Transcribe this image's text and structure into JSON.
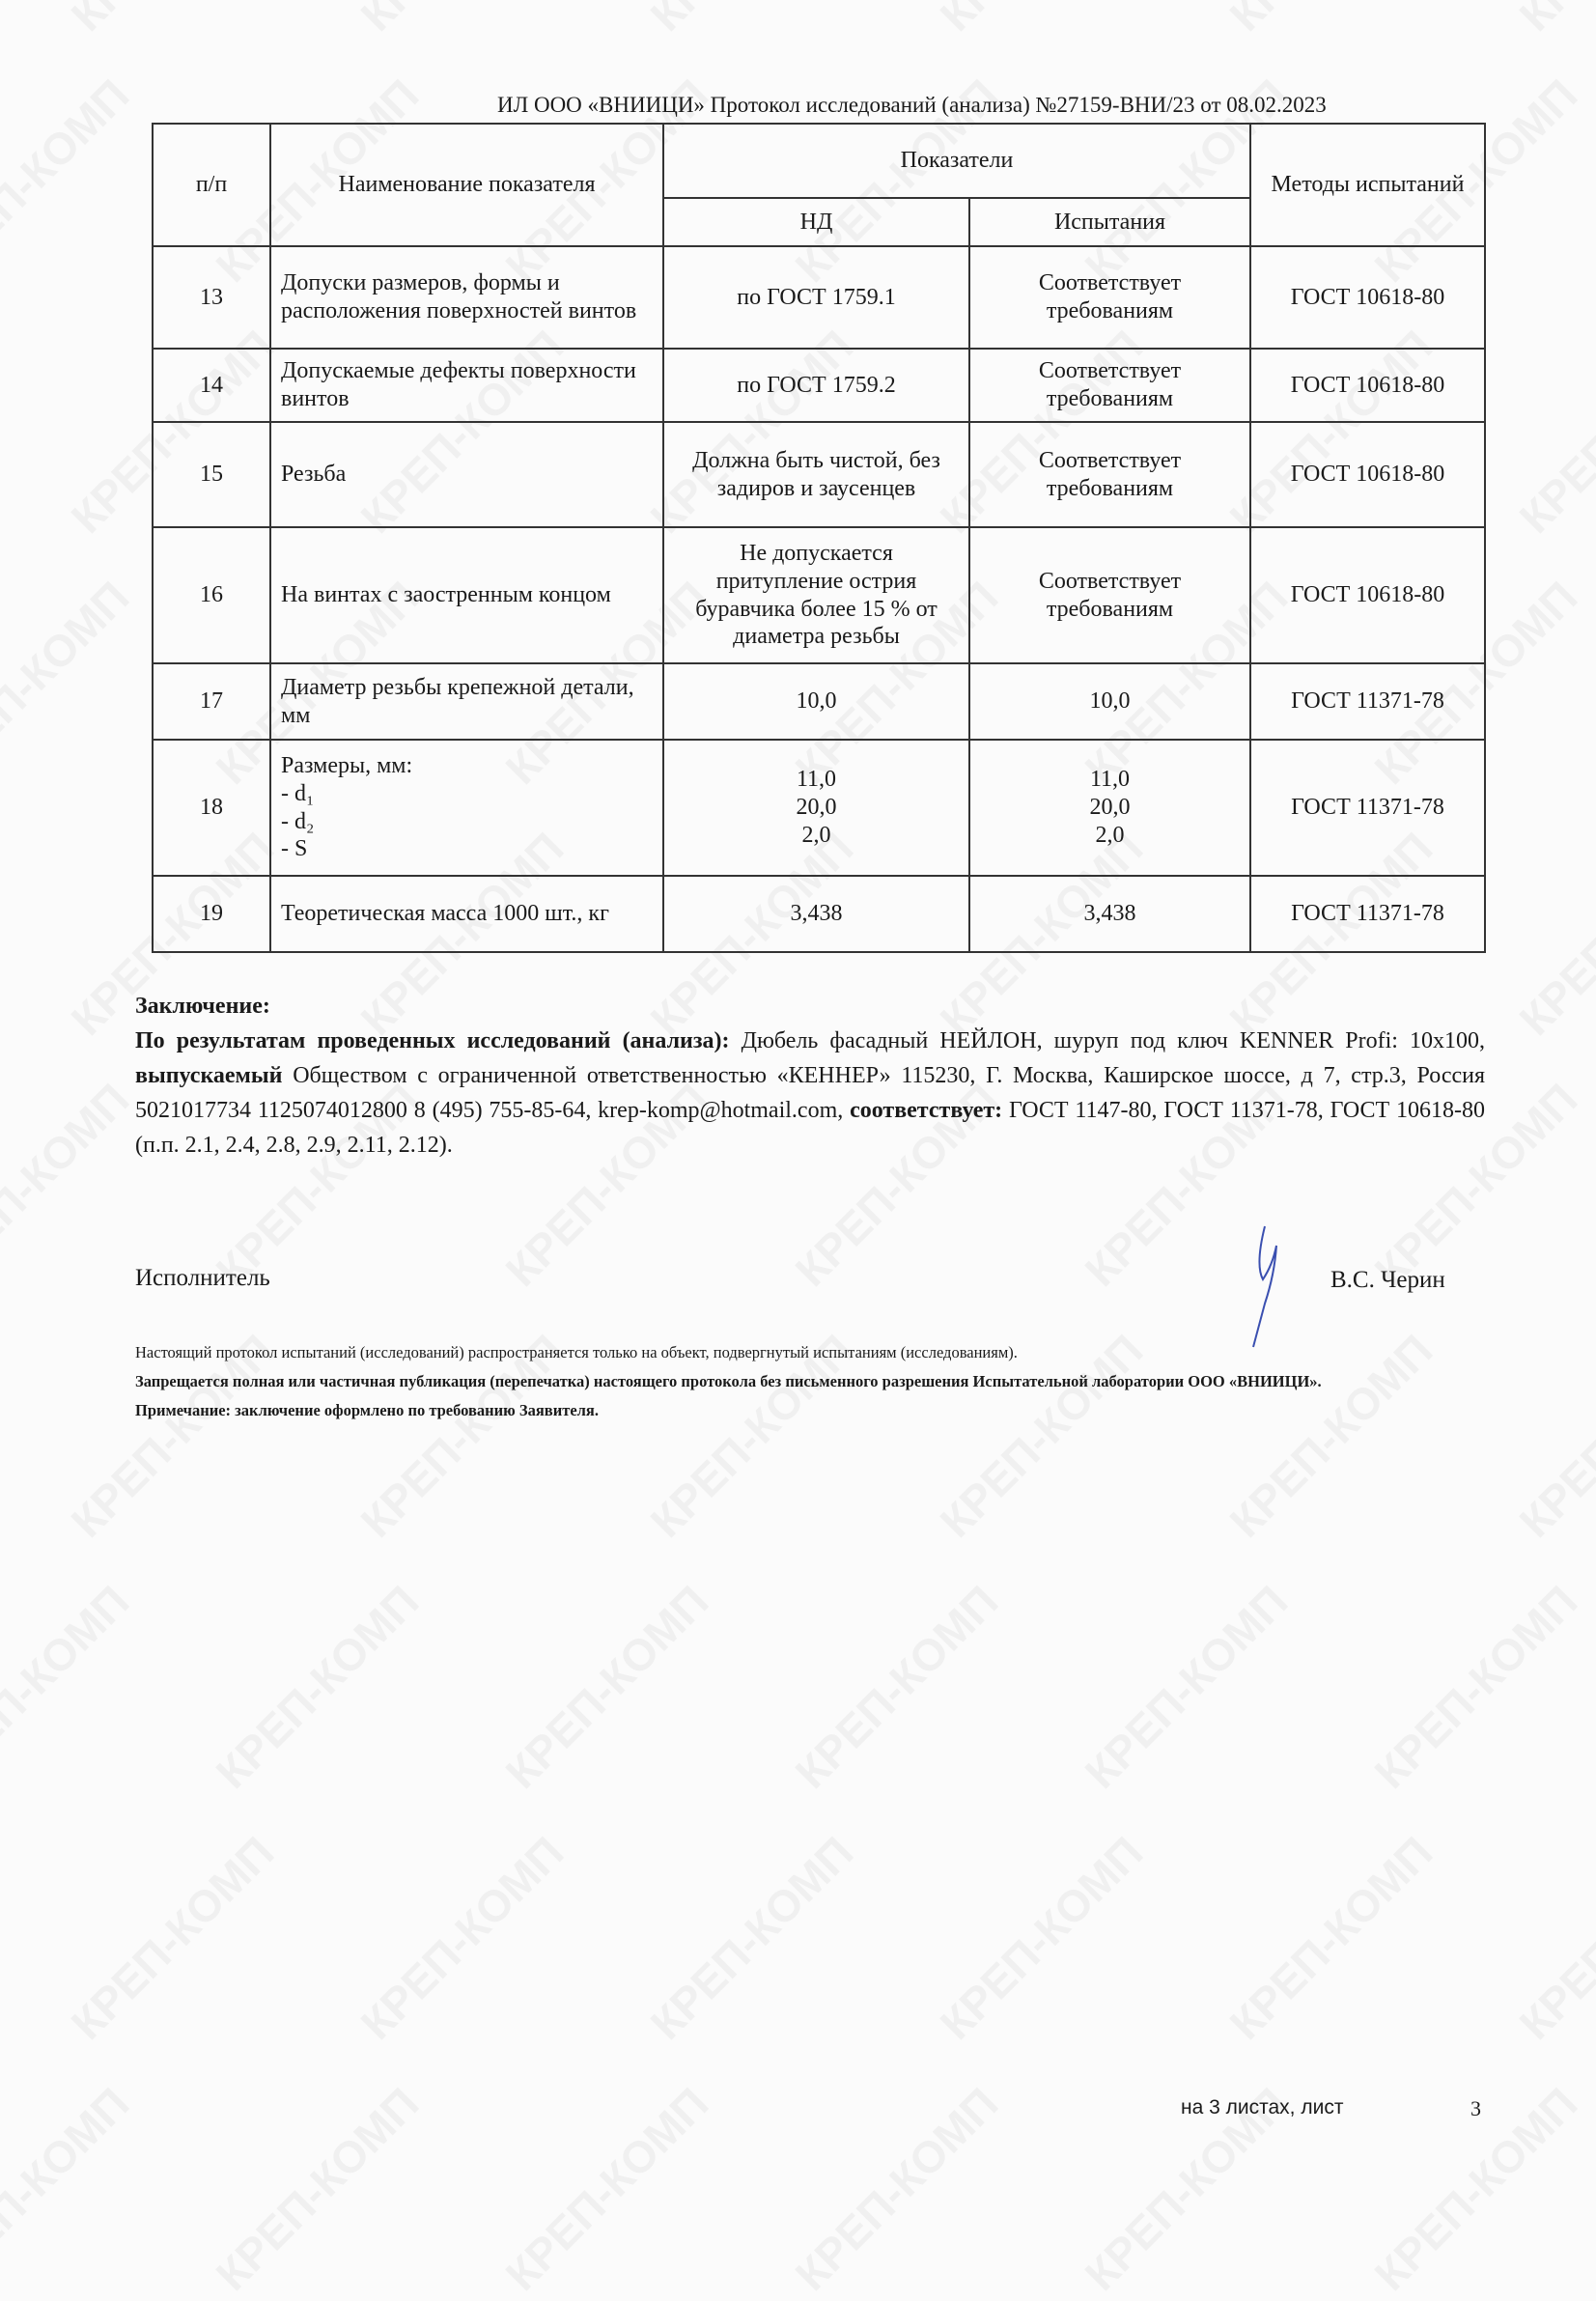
{
  "watermark": "КРЕП-КОМП",
  "header": "ИЛ ООО «ВНИИЦИ» Протокол исследований (анализа)  №27159-ВНИ/23 от  08.02.2023",
  "table": {
    "headers": {
      "num": "п/п",
      "name": "Наименование показателя",
      "indicators": "Показатели",
      "nd": "НД",
      "test": "Испытания",
      "methods": "Методы испытаний"
    },
    "rows": [
      {
        "num": "13",
        "name": "Допуски размеров, формы и расположения поверхностей винтов",
        "nd": "по ГОСТ 1759.1",
        "test": "Соответствует требованиям",
        "method": "ГОСТ 10618-80"
      },
      {
        "num": "14",
        "name": "Допускаемые дефекты поверхности винтов",
        "nd": "по ГОСТ 1759.2",
        "test": "Соответствует требованиям",
        "method": "ГОСТ 10618-80"
      },
      {
        "num": "15",
        "name": "Резьба",
        "nd": "Должна быть чистой, без задиров и заусенцев",
        "test": "Соответствует требованиям",
        "method": "ГОСТ 10618-80"
      },
      {
        "num": "16",
        "name": "На винтах с заостренным концом",
        "nd": "Не допускается притупление острия буравчика более 15 % от диаметра резьбы",
        "test": "Соответствует требованиям",
        "method": "ГОСТ 10618-80"
      },
      {
        "num": "17",
        "name": "Диаметр резьбы крепежной детали, мм",
        "nd": "10,0",
        "test": "10,0",
        "method": "ГОСТ 11371-78"
      },
      {
        "num": "18",
        "name": "Размеры, мм:\n- d₁\n- d₂\n- S",
        "nd": "11,0\n20,0\n2,0",
        "test": "11,0\n20,0\n2,0",
        "method": "ГОСТ 11371-78"
      },
      {
        "num": "19",
        "name": "Теоретическая масса 1000 шт., кг",
        "nd": "3,438",
        "test": "3,438",
        "method": "ГОСТ 11371-78"
      }
    ]
  },
  "conclusion": {
    "title": "Заключение:",
    "lead": "По результатам проведенных исследований (анализа):",
    "text1": " Дюбель фасадный НЕЙЛОН, шуруп под ключ KENNER Profi: 10x100, ",
    "bold2": "выпускаемый",
    "text2": " Обществом с ограниченной ответственностью «КЕННЕР»  115230, Г. Москва, Каширское шоссе, д 7, стр.3, Россия 5021017734 1125074012800 8 (495) 755-85-64, krep-komp@hotmail.com, ",
    "bold3": "соответствует:",
    "text3": " ГОСТ 1147-80, ГОСТ 11371-78, ГОСТ 10618-80 (п.п. 2.1, 2.4, 2.8, 2.9, 2.11, 2.12)."
  },
  "signature": {
    "role": "Исполнитель",
    "name": "В.С. Черин"
  },
  "footnotes": {
    "line1": "Настоящий протокол испытаний (исследований) распространяется только на объект, подвергнутый испытаниям (исследованиям).",
    "line2": "Запрещается полная или частичная публикация (перепечатка) настоящего протокола без письменного разрешения Испытательной лаборатории  ООО «ВНИИЦИ».",
    "line3": "Примечание: заключение оформлено по требованию Заявителя."
  },
  "footer": {
    "sheets": "на 3  листах, лист",
    "page": "3"
  },
  "colors": {
    "signature_ink": "#3a4fb0"
  }
}
